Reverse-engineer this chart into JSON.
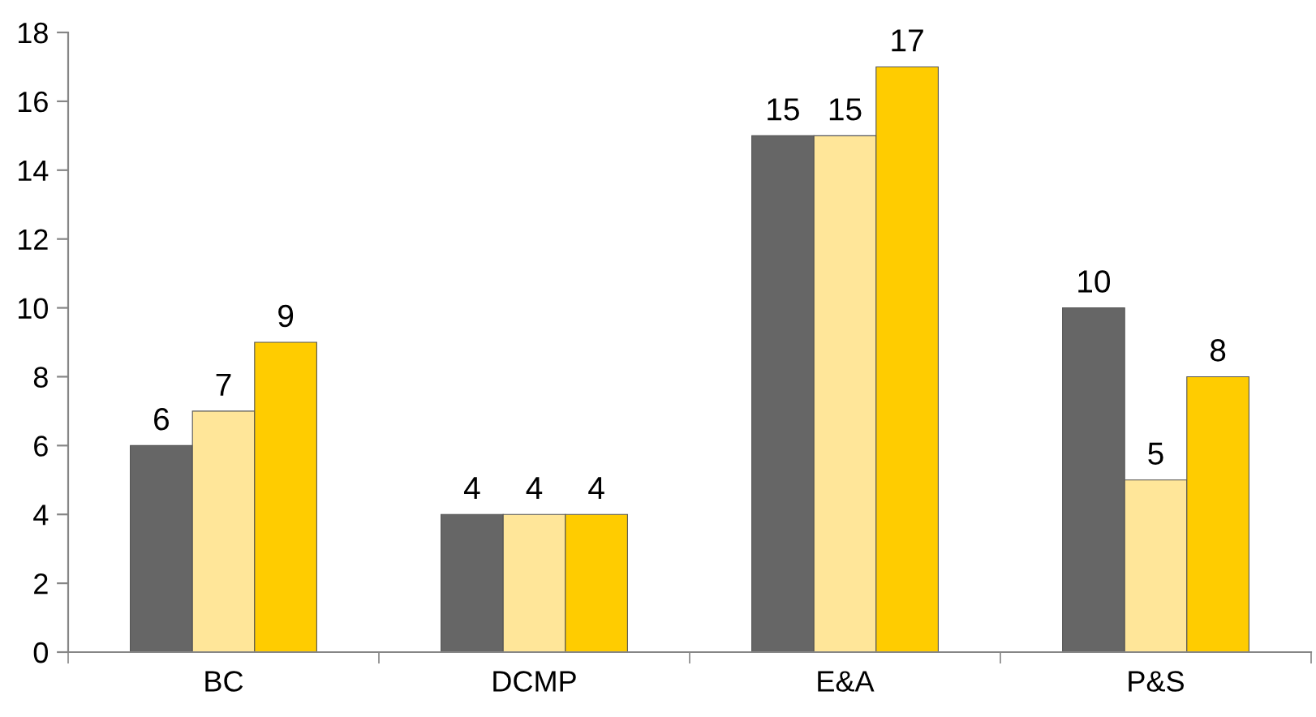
{
  "chart_data": {
    "type": "bar",
    "categories": [
      "BC",
      "DCMP",
      "E&A",
      "P&S"
    ],
    "series": [
      {
        "color": "#666666",
        "values": [
          6,
          4,
          15,
          10
        ]
      },
      {
        "color": "#ffe699",
        "values": [
          7,
          4,
          15,
          5
        ]
      },
      {
        "color": "#ffcc00",
        "values": [
          9,
          4,
          17,
          8
        ]
      }
    ],
    "ylim": [
      0,
      18
    ],
    "yticks": [
      0,
      2,
      4,
      6,
      8,
      10,
      12,
      14,
      16,
      18
    ],
    "data_labels": true,
    "grid": false,
    "legend": false
  }
}
